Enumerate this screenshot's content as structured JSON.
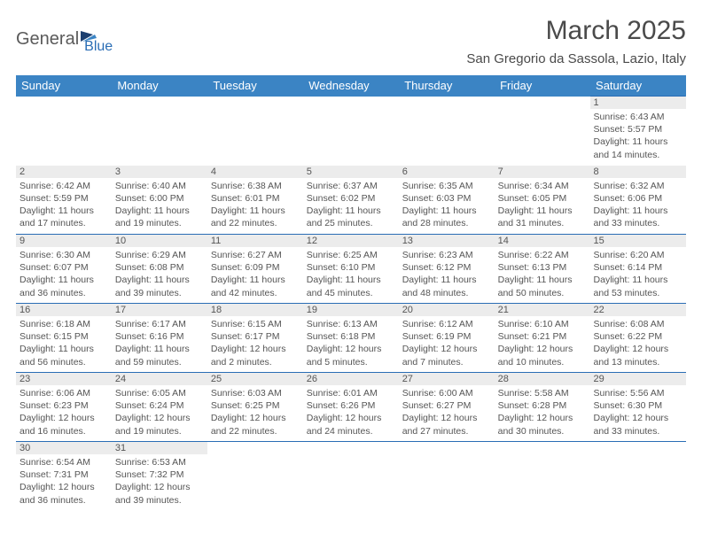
{
  "logo": {
    "text1": "General",
    "text2": "Blue"
  },
  "title": "March 2025",
  "location": "San Gregorio da Sassola, Lazio, Italy",
  "colors": {
    "header_bg": "#3b84c4",
    "header_text": "#ffffff",
    "border": "#2a6db5",
    "daynum_bg": "#ececec",
    "text": "#555555",
    "logo_gray": "#5a5a5a",
    "logo_blue": "#2a6db5"
  },
  "day_headers": [
    "Sunday",
    "Monday",
    "Tuesday",
    "Wednesday",
    "Thursday",
    "Friday",
    "Saturday"
  ],
  "weeks": [
    [
      null,
      null,
      null,
      null,
      null,
      null,
      {
        "n": "1",
        "sr": "6:43 AM",
        "ss": "5:57 PM",
        "dl": "11 hours and 14 minutes."
      }
    ],
    [
      {
        "n": "2",
        "sr": "6:42 AM",
        "ss": "5:59 PM",
        "dl": "11 hours and 17 minutes."
      },
      {
        "n": "3",
        "sr": "6:40 AM",
        "ss": "6:00 PM",
        "dl": "11 hours and 19 minutes."
      },
      {
        "n": "4",
        "sr": "6:38 AM",
        "ss": "6:01 PM",
        "dl": "11 hours and 22 minutes."
      },
      {
        "n": "5",
        "sr": "6:37 AM",
        "ss": "6:02 PM",
        "dl": "11 hours and 25 minutes."
      },
      {
        "n": "6",
        "sr": "6:35 AM",
        "ss": "6:03 PM",
        "dl": "11 hours and 28 minutes."
      },
      {
        "n": "7",
        "sr": "6:34 AM",
        "ss": "6:05 PM",
        "dl": "11 hours and 31 minutes."
      },
      {
        "n": "8",
        "sr": "6:32 AM",
        "ss": "6:06 PM",
        "dl": "11 hours and 33 minutes."
      }
    ],
    [
      {
        "n": "9",
        "sr": "6:30 AM",
        "ss": "6:07 PM",
        "dl": "11 hours and 36 minutes."
      },
      {
        "n": "10",
        "sr": "6:29 AM",
        "ss": "6:08 PM",
        "dl": "11 hours and 39 minutes."
      },
      {
        "n": "11",
        "sr": "6:27 AM",
        "ss": "6:09 PM",
        "dl": "11 hours and 42 minutes."
      },
      {
        "n": "12",
        "sr": "6:25 AM",
        "ss": "6:10 PM",
        "dl": "11 hours and 45 minutes."
      },
      {
        "n": "13",
        "sr": "6:23 AM",
        "ss": "6:12 PM",
        "dl": "11 hours and 48 minutes."
      },
      {
        "n": "14",
        "sr": "6:22 AM",
        "ss": "6:13 PM",
        "dl": "11 hours and 50 minutes."
      },
      {
        "n": "15",
        "sr": "6:20 AM",
        "ss": "6:14 PM",
        "dl": "11 hours and 53 minutes."
      }
    ],
    [
      {
        "n": "16",
        "sr": "6:18 AM",
        "ss": "6:15 PM",
        "dl": "11 hours and 56 minutes."
      },
      {
        "n": "17",
        "sr": "6:17 AM",
        "ss": "6:16 PM",
        "dl": "11 hours and 59 minutes."
      },
      {
        "n": "18",
        "sr": "6:15 AM",
        "ss": "6:17 PM",
        "dl": "12 hours and 2 minutes."
      },
      {
        "n": "19",
        "sr": "6:13 AM",
        "ss": "6:18 PM",
        "dl": "12 hours and 5 minutes."
      },
      {
        "n": "20",
        "sr": "6:12 AM",
        "ss": "6:19 PM",
        "dl": "12 hours and 7 minutes."
      },
      {
        "n": "21",
        "sr": "6:10 AM",
        "ss": "6:21 PM",
        "dl": "12 hours and 10 minutes."
      },
      {
        "n": "22",
        "sr": "6:08 AM",
        "ss": "6:22 PM",
        "dl": "12 hours and 13 minutes."
      }
    ],
    [
      {
        "n": "23",
        "sr": "6:06 AM",
        "ss": "6:23 PM",
        "dl": "12 hours and 16 minutes."
      },
      {
        "n": "24",
        "sr": "6:05 AM",
        "ss": "6:24 PM",
        "dl": "12 hours and 19 minutes."
      },
      {
        "n": "25",
        "sr": "6:03 AM",
        "ss": "6:25 PM",
        "dl": "12 hours and 22 minutes."
      },
      {
        "n": "26",
        "sr": "6:01 AM",
        "ss": "6:26 PM",
        "dl": "12 hours and 24 minutes."
      },
      {
        "n": "27",
        "sr": "6:00 AM",
        "ss": "6:27 PM",
        "dl": "12 hours and 27 minutes."
      },
      {
        "n": "28",
        "sr": "5:58 AM",
        "ss": "6:28 PM",
        "dl": "12 hours and 30 minutes."
      },
      {
        "n": "29",
        "sr": "5:56 AM",
        "ss": "6:30 PM",
        "dl": "12 hours and 33 minutes."
      }
    ],
    [
      {
        "n": "30",
        "sr": "6:54 AM",
        "ss": "7:31 PM",
        "dl": "12 hours and 36 minutes."
      },
      {
        "n": "31",
        "sr": "6:53 AM",
        "ss": "7:32 PM",
        "dl": "12 hours and 39 minutes."
      },
      null,
      null,
      null,
      null,
      null
    ]
  ],
  "labels": {
    "sunrise": "Sunrise: ",
    "sunset": "Sunset: ",
    "daylight": "Daylight: "
  }
}
